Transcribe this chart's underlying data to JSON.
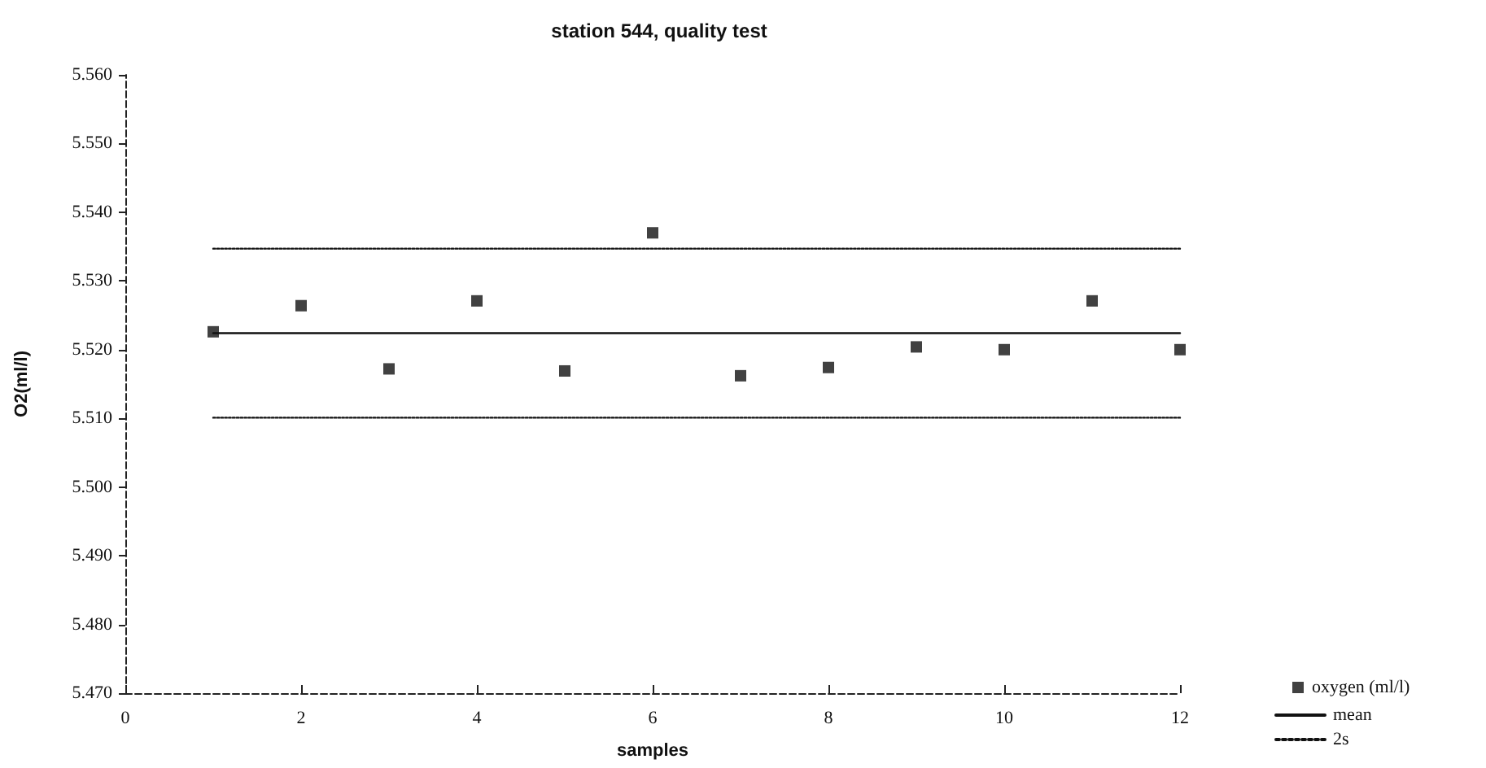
{
  "chart_data": {
    "type": "scatter",
    "title": "station 544, quality test",
    "xlabel": "samples",
    "ylabel": "O2(ml/l)",
    "x": [
      1,
      2,
      3,
      4,
      5,
      6,
      7,
      8,
      9,
      10,
      11,
      12
    ],
    "series": [
      {
        "name": "oxygen (ml/l)",
        "color": "#111111",
        "marker": "square",
        "values": [
          5.5226,
          5.5264,
          5.5172,
          5.5271,
          5.5169,
          5.537,
          5.5162,
          5.5174,
          5.5204,
          5.52,
          5.5271,
          5.52
        ]
      },
      {
        "name": "mean",
        "type": "line",
        "color": "#111111",
        "line_style": "solid",
        "marker": "none",
        "values": [
          5.5224,
          5.5224,
          5.5224,
          5.5224,
          5.5224,
          5.5224,
          5.5224,
          5.5224,
          5.5224,
          5.5224,
          5.5224,
          5.5224
        ]
      },
      {
        "name": "2s",
        "type": "line",
        "color": "#111111",
        "line_style": "dotted",
        "marker": "none",
        "values": [
          5.5347,
          5.5347,
          5.5347,
          5.5347,
          5.5347,
          5.5347,
          5.5347,
          5.5347,
          5.5347,
          5.5347,
          5.5347,
          5.5347
        ]
      },
      {
        "type": "line",
        "color": "#111111",
        "line_style": "dotted",
        "marker": "none",
        "values": [
          5.5101,
          5.5101,
          5.5101,
          5.5101,
          5.5101,
          5.5101,
          5.5101,
          5.5101,
          5.5101,
          5.5101,
          5.5101,
          5.5101
        ]
      }
    ],
    "xlim": [
      0,
      12
    ],
    "xticks": [
      0,
      2,
      4,
      6,
      8,
      10,
      12
    ],
    "ylim": [
      5.47,
      5.56
    ],
    "yticks": [
      {
        "value": 5.47,
        "label": "5.470"
      },
      {
        "value": 5.48,
        "label": "5.480"
      },
      {
        "value": 5.49,
        "label": "5.490"
      },
      {
        "value": 5.5,
        "label": "5.500"
      },
      {
        "value": 5.51,
        "label": "5.510"
      },
      {
        "value": 5.52,
        "label": "5.520"
      },
      {
        "value": 5.53,
        "label": "5.530"
      },
      {
        "value": 5.54,
        "label": "5.540"
      },
      {
        "value": 5.55,
        "label": "5.550"
      },
      {
        "value": 5.56,
        "label": "5.560"
      }
    ],
    "grid": false,
    "legend": "bottom right"
  }
}
